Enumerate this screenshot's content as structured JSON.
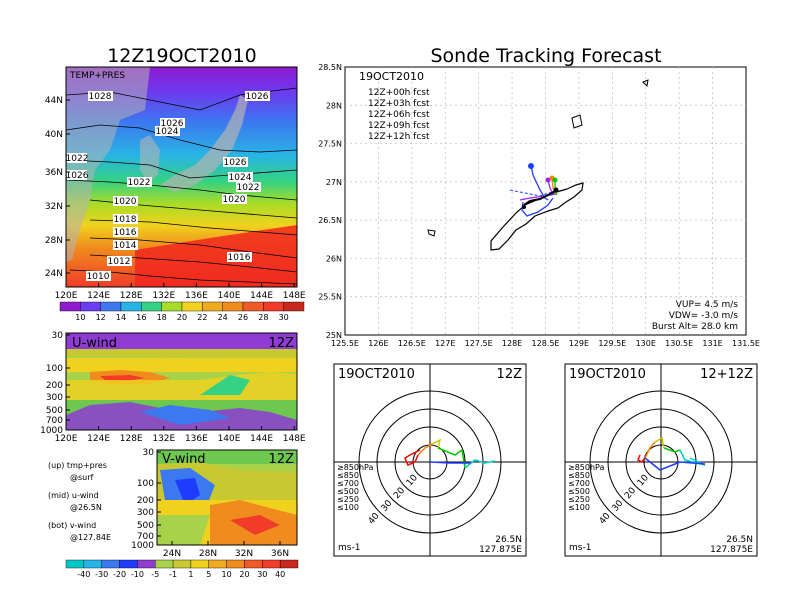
{
  "left_title": "12Z19OCT2010",
  "right_title": "Sonde Tracking Forecast",
  "temp_map": {
    "label": "TEMP+PRES",
    "lat_ticks": [
      "24N",
      "28N",
      "32N",
      "36N",
      "40N",
      "44N"
    ],
    "lon_ticks": [
      "120E",
      "124E",
      "128E",
      "132E",
      "136E",
      "140E",
      "144E",
      "148E"
    ],
    "isobars": [
      "1028",
      "1026",
      "1026",
      "1024",
      "1026",
      "1024",
      "1022",
      "1022",
      "1020",
      "1020",
      "1018",
      "1016",
      "1014",
      "1012",
      "1010",
      "1016",
      "1022",
      "1026",
      "1024"
    ],
    "colorbar": [
      "10",
      "12",
      "14",
      "16",
      "18",
      "20",
      "22",
      "24",
      "26",
      "28",
      "30"
    ]
  },
  "u_wind": {
    "label": "U-wind",
    "time": "12Z",
    "p_ticks": [
      "30",
      "100",
      "200",
      "300",
      "500",
      "700",
      "1000"
    ],
    "lon_ticks": [
      "120E",
      "124E",
      "128E",
      "132E",
      "136E",
      "140E",
      "144E",
      "148E"
    ]
  },
  "v_wind": {
    "label": "V-wind",
    "time": "12Z",
    "p_ticks": [
      "30",
      "100",
      "200",
      "300",
      "500",
      "700",
      "1000"
    ],
    "lat_ticks": [
      "24N",
      "28N",
      "32N",
      "36N"
    ],
    "colorbar": [
      "-40",
      "-30",
      "-20",
      "-10",
      "-5",
      "-1",
      "1",
      "5",
      "10",
      "20",
      "30",
      "40"
    ]
  },
  "legend_text": [
    "(up) tmp+pres",
    "@surf",
    "(mid) u-wind",
    "@26.5N",
    "(bot) v-wind",
    "@127.84E"
  ],
  "track": {
    "date": "19OCT2010",
    "forecasts": [
      {
        "label": "12Z+00h fcst",
        "color": "#000000"
      },
      {
        "label": "12Z+03h fcst",
        "color": "#a020f0"
      },
      {
        "label": "12Z+06h fcst",
        "color": "#1e3cff"
      },
      {
        "label": "12Z+09h fcst",
        "color": "#00c800"
      },
      {
        "label": "12Z+12h fcst",
        "color": "#ff8200"
      }
    ],
    "lat_ticks": [
      "25N",
      "25.5N",
      "26N",
      "26.5N",
      "27N",
      "27.5N",
      "28N",
      "28.5N"
    ],
    "lon_ticks": [
      "125.5E",
      "126E",
      "126.5E",
      "127E",
      "127.5E",
      "128E",
      "128.5E",
      "129E",
      "129.5E",
      "130E",
      "130.5E",
      "131E",
      "131.5E"
    ],
    "vup": "VUP= 4.5 m/s",
    "vdw": "VDW= -3.0 m/s",
    "burst": "Burst Alt= 28.0 km"
  },
  "hodo1": {
    "date": "19OCT2010",
    "time": "12Z",
    "rings": [
      "10",
      "20",
      "30",
      "40"
    ],
    "levels": [
      {
        "label": "≥850hPa",
        "color": "#ff0000"
      },
      {
        "label": "≤850",
        "color": "#ff8200"
      },
      {
        "label": "≤700",
        "color": "#c8c800"
      },
      {
        "label": "≤500",
        "color": "#00c800"
      },
      {
        "label": "≤250",
        "color": "#00c8c8"
      },
      {
        "label": "≤100",
        "color": "#1e3cff"
      }
    ],
    "units": "ms-1",
    "lat": "26.5N",
    "lon": "127.875E"
  },
  "hodo2": {
    "date": "19OCT2010",
    "time": "12+12Z",
    "rings": [
      "10",
      "20",
      "30",
      "40"
    ],
    "levels": [
      {
        "label": "≥850hPa",
        "color": "#ff0000"
      },
      {
        "label": "≤850",
        "color": "#ff8200"
      },
      {
        "label": "≤700",
        "color": "#c8c800"
      },
      {
        "label": "≤500",
        "color": "#00c800"
      },
      {
        "label": "≤250",
        "color": "#00c8c8"
      },
      {
        "label": "≤100",
        "color": "#1e3cff"
      }
    ],
    "units": "ms-1",
    "lat": "26.5N",
    "lon": "127.875E"
  }
}
